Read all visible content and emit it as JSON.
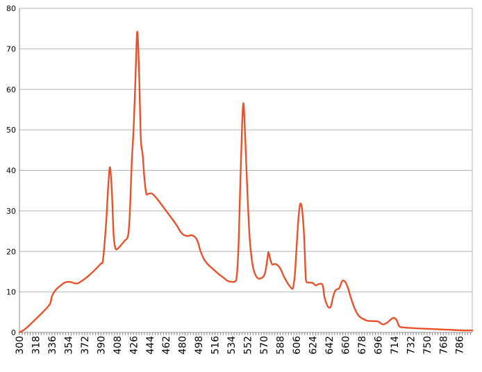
{
  "chart_data": {
    "type": "line",
    "title": "",
    "xlabel": "",
    "ylabel": "",
    "xlim": [
      300,
      800
    ],
    "ylim": [
      0,
      80
    ],
    "yticks": [
      0,
      10,
      20,
      30,
      40,
      50,
      60,
      70,
      80
    ],
    "xticks": [
      300,
      318,
      336,
      354,
      372,
      390,
      408,
      426,
      444,
      462,
      480,
      498,
      516,
      534,
      552,
      570,
      588,
      606,
      624,
      642,
      660,
      678,
      696,
      714,
      732,
      750,
      768,
      786
    ],
    "grid": "horizontal",
    "legend": "none",
    "colors": {
      "series": "#e8522a",
      "grid": "#b4b4b4",
      "axis": "#888888"
    },
    "series": [
      {
        "name": "",
        "points": [
          [
            300,
            0
          ],
          [
            306,
            0.8
          ],
          [
            312,
            2
          ],
          [
            318,
            3.3
          ],
          [
            324,
            4.6
          ],
          [
            330,
            6
          ],
          [
            334,
            7.2
          ],
          [
            336,
            9
          ],
          [
            340,
            10.5
          ],
          [
            345,
            11.5
          ],
          [
            350,
            12.3
          ],
          [
            355,
            12.5
          ],
          [
            360,
            12.2
          ],
          [
            364,
            12.1
          ],
          [
            368,
            12.6
          ],
          [
            372,
            13.2
          ],
          [
            378,
            14.3
          ],
          [
            384,
            15.6
          ],
          [
            390,
            17
          ],
          [
            392,
            17.5
          ],
          [
            394,
            22
          ],
          [
            396,
            28
          ],
          [
            398,
            36
          ],
          [
            400,
            40.8
          ],
          [
            402,
            35
          ],
          [
            404,
            24
          ],
          [
            406,
            20.8
          ],
          [
            408,
            20.6
          ],
          [
            412,
            21.5
          ],
          [
            416,
            22.6
          ],
          [
            420,
            24
          ],
          [
            422,
            30
          ],
          [
            424,
            42
          ],
          [
            426,
            50
          ],
          [
            428,
            62
          ],
          [
            430,
            74.2
          ],
          [
            432,
            65
          ],
          [
            434,
            48
          ],
          [
            436,
            44
          ],
          [
            438,
            38
          ],
          [
            440,
            34.3
          ],
          [
            442,
            34.2
          ],
          [
            446,
            34.3
          ],
          [
            450,
            33.5
          ],
          [
            456,
            31.8
          ],
          [
            462,
            30
          ],
          [
            468,
            28.2
          ],
          [
            474,
            26.3
          ],
          [
            478,
            24.8
          ],
          [
            482,
            24
          ],
          [
            486,
            23.8
          ],
          [
            490,
            24
          ],
          [
            494,
            23.5
          ],
          [
            497,
            22.3
          ],
          [
            500,
            20
          ],
          [
            504,
            18
          ],
          [
            508,
            16.8
          ],
          [
            514,
            15.6
          ],
          [
            520,
            14.4
          ],
          [
            526,
            13.4
          ],
          [
            530,
            12.7
          ],
          [
            534,
            12.5
          ],
          [
            538,
            12.6
          ],
          [
            540,
            14
          ],
          [
            542,
            22
          ],
          [
            544,
            38
          ],
          [
            546,
            52
          ],
          [
            547,
            56.2
          ],
          [
            548,
            55
          ],
          [
            550,
            44
          ],
          [
            552,
            33
          ],
          [
            554,
            24
          ],
          [
            556,
            19
          ],
          [
            558,
            16
          ],
          [
            561,
            14
          ],
          [
            564,
            13.3
          ],
          [
            567,
            13.4
          ],
          [
            570,
            14
          ],
          [
            572,
            15.5
          ],
          [
            574,
            18.5
          ],
          [
            575,
            19.8
          ],
          [
            577,
            18
          ],
          [
            579,
            16.8
          ],
          [
            582,
            16.9
          ],
          [
            585,
            16.6
          ],
          [
            588,
            15.8
          ],
          [
            592,
            13.8
          ],
          [
            596,
            12.2
          ],
          [
            600,
            11
          ],
          [
            602,
            11
          ],
          [
            604,
            14
          ],
          [
            606,
            21
          ],
          [
            608,
            28
          ],
          [
            610,
            31.7
          ],
          [
            612,
            30.5
          ],
          [
            614,
            25
          ],
          [
            615,
            20
          ],
          [
            616,
            14
          ],
          [
            617,
            12.5
          ],
          [
            620,
            12.3
          ],
          [
            624,
            12.2
          ],
          [
            627,
            11.6
          ],
          [
            630,
            11.9
          ],
          [
            633,
            12
          ],
          [
            635,
            11.5
          ],
          [
            637,
            8.5
          ],
          [
            640,
            6.6
          ],
          [
            642,
            6.1
          ],
          [
            644,
            6.5
          ],
          [
            646,
            8.5
          ],
          [
            648,
            10
          ],
          [
            650,
            10.6
          ],
          [
            653,
            10.9
          ],
          [
            655,
            12
          ],
          [
            657,
            12.8
          ],
          [
            660,
            12.4
          ],
          [
            663,
            10.8
          ],
          [
            666,
            8.5
          ],
          [
            670,
            6
          ],
          [
            674,
            4.3
          ],
          [
            678,
            3.5
          ],
          [
            684,
            2.9
          ],
          [
            690,
            2.8
          ],
          [
            696,
            2.7
          ],
          [
            700,
            2.1
          ],
          [
            702,
            2
          ],
          [
            706,
            2.4
          ],
          [
            710,
            3.2
          ],
          [
            713,
            3.6
          ],
          [
            716,
            3.2
          ],
          [
            718,
            2.2
          ],
          [
            720,
            1.4
          ],
          [
            726,
            1.2
          ],
          [
            732,
            1.1
          ],
          [
            740,
            1
          ],
          [
            750,
            0.9
          ],
          [
            760,
            0.8
          ],
          [
            770,
            0.7
          ],
          [
            780,
            0.6
          ],
          [
            790,
            0.5
          ],
          [
            800,
            0.5
          ]
        ]
      }
    ]
  }
}
